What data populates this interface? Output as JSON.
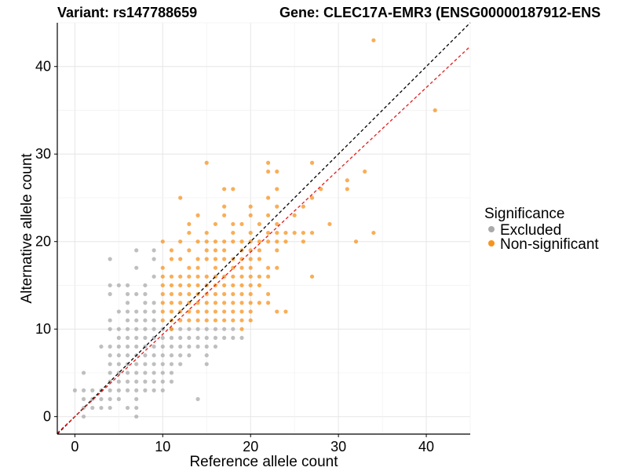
{
  "chart_data": {
    "type": "scatter",
    "title_left": "Variant: rs147788659",
    "title_right": "Gene: CLEC17A-EMR3 (ENSG00000187912-ENS",
    "xlabel": "Reference allele count",
    "ylabel": "Alternative allele count",
    "xlim": [
      -2,
      45
    ],
    "ylim": [
      -2,
      45
    ],
    "xticks": [
      0,
      10,
      20,
      30,
      40
    ],
    "yticks": [
      0,
      10,
      20,
      30,
      40
    ],
    "grid": true,
    "legend": {
      "title": "Significance",
      "position": "right",
      "entries": [
        {
          "name": "Excluded",
          "color": "#aaaaaa"
        },
        {
          "name": "Non-significant",
          "color": "#f7931e"
        }
      ]
    },
    "reference_lines": [
      {
        "kind": "diagonal",
        "slope": 1,
        "intercept": 0,
        "color": "#000000",
        "dash": "dashed"
      },
      {
        "kind": "fit",
        "slope": 0.94,
        "intercept": 0,
        "color": "#e31a1c",
        "dash": "dashed"
      }
    ],
    "series": [
      {
        "name": "Excluded",
        "color": "#aaaaaa",
        "points": [
          [
            0,
            3
          ],
          [
            1,
            0
          ],
          [
            1,
            1
          ],
          [
            1,
            2
          ],
          [
            1,
            3
          ],
          [
            1,
            5
          ],
          [
            2,
            1
          ],
          [
            2,
            2
          ],
          [
            2,
            3
          ],
          [
            3,
            1
          ],
          [
            3,
            2
          ],
          [
            3,
            3
          ],
          [
            3,
            8
          ],
          [
            4,
            1
          ],
          [
            4,
            2
          ],
          [
            4,
            3
          ],
          [
            4,
            4
          ],
          [
            4,
            5
          ],
          [
            4,
            6
          ],
          [
            4,
            7
          ],
          [
            4,
            8
          ],
          [
            4,
            10
          ],
          [
            4,
            11
          ],
          [
            4,
            14
          ],
          [
            4,
            15
          ],
          [
            4,
            18
          ],
          [
            5,
            2
          ],
          [
            5,
            3
          ],
          [
            5,
            4
          ],
          [
            5,
            5
          ],
          [
            5,
            6
          ],
          [
            5,
            7
          ],
          [
            5,
            8
          ],
          [
            5,
            9
          ],
          [
            5,
            10
          ],
          [
            5,
            12
          ],
          [
            5,
            15
          ],
          [
            6,
            1
          ],
          [
            6,
            3
          ],
          [
            6,
            4
          ],
          [
            6,
            5
          ],
          [
            6,
            6
          ],
          [
            6,
            7
          ],
          [
            6,
            8
          ],
          [
            6,
            9
          ],
          [
            6,
            10
          ],
          [
            6,
            11
          ],
          [
            6,
            12
          ],
          [
            6,
            13
          ],
          [
            6,
            14
          ],
          [
            6,
            15
          ],
          [
            7,
            0
          ],
          [
            7,
            1
          ],
          [
            7,
            2
          ],
          [
            7,
            3
          ],
          [
            7,
            4
          ],
          [
            7,
            5
          ],
          [
            7,
            6
          ],
          [
            7,
            7
          ],
          [
            7,
            8
          ],
          [
            7,
            9
          ],
          [
            7,
            10
          ],
          [
            7,
            11
          ],
          [
            7,
            12
          ],
          [
            7,
            14
          ],
          [
            7,
            17
          ],
          [
            7,
            19
          ],
          [
            8,
            3
          ],
          [
            8,
            4
          ],
          [
            8,
            5
          ],
          [
            8,
            6
          ],
          [
            8,
            7
          ],
          [
            8,
            8
          ],
          [
            8,
            9
          ],
          [
            8,
            10
          ],
          [
            8,
            11
          ],
          [
            8,
            12
          ],
          [
            8,
            13
          ],
          [
            8,
            14
          ],
          [
            8,
            15
          ],
          [
            9,
            3
          ],
          [
            9,
            4
          ],
          [
            9,
            5
          ],
          [
            9,
            6
          ],
          [
            9,
            7
          ],
          [
            9,
            8
          ],
          [
            9,
            9
          ],
          [
            9,
            10
          ],
          [
            9,
            11
          ],
          [
            9,
            12
          ],
          [
            9,
            13
          ],
          [
            9,
            16
          ],
          [
            9,
            18
          ],
          [
            9,
            19
          ],
          [
            10,
            3
          ],
          [
            10,
            4
          ],
          [
            10,
            5
          ],
          [
            10,
            6
          ],
          [
            10,
            7
          ],
          [
            10,
            8
          ],
          [
            10,
            9
          ],
          [
            10,
            10
          ],
          [
            11,
            4
          ],
          [
            11,
            5
          ],
          [
            11,
            6
          ],
          [
            11,
            7
          ],
          [
            11,
            8
          ],
          [
            11,
            9
          ],
          [
            11,
            10
          ],
          [
            12,
            6
          ],
          [
            12,
            7
          ],
          [
            12,
            8
          ],
          [
            12,
            9
          ],
          [
            12,
            10
          ],
          [
            13,
            7
          ],
          [
            13,
            8
          ],
          [
            13,
            9
          ],
          [
            13,
            10
          ],
          [
            14,
            2
          ],
          [
            14,
            8
          ],
          [
            14,
            9
          ],
          [
            14,
            10
          ],
          [
            15,
            6
          ],
          [
            15,
            7
          ],
          [
            15,
            8
          ],
          [
            15,
            9
          ],
          [
            15,
            10
          ],
          [
            16,
            8
          ],
          [
            16,
            9
          ],
          [
            16,
            10
          ],
          [
            17,
            9
          ],
          [
            17,
            10
          ],
          [
            18,
            9
          ],
          [
            18,
            10
          ],
          [
            19,
            9
          ]
        ]
      },
      {
        "name": "Non-significant",
        "color": "#f7931e",
        "points": [
          [
            10,
            11
          ],
          [
            10,
            12
          ],
          [
            10,
            13
          ],
          [
            10,
            14
          ],
          [
            10,
            15
          ],
          [
            10,
            16
          ],
          [
            10,
            17
          ],
          [
            10,
            20
          ],
          [
            11,
            10
          ],
          [
            11,
            11
          ],
          [
            11,
            12
          ],
          [
            11,
            13
          ],
          [
            11,
            14
          ],
          [
            11,
            15
          ],
          [
            11,
            16
          ],
          [
            11,
            18
          ],
          [
            11,
            19
          ],
          [
            12,
            11
          ],
          [
            12,
            12
          ],
          [
            12,
            13
          ],
          [
            12,
            14
          ],
          [
            12,
            15
          ],
          [
            12,
            16
          ],
          [
            12,
            18
          ],
          [
            12,
            20
          ],
          [
            12,
            25
          ],
          [
            13,
            11
          ],
          [
            13,
            12
          ],
          [
            13,
            13
          ],
          [
            13,
            14
          ],
          [
            13,
            15
          ],
          [
            13,
            16
          ],
          [
            13,
            17
          ],
          [
            13,
            19
          ],
          [
            13,
            21
          ],
          [
            13,
            22
          ],
          [
            14,
            11
          ],
          [
            14,
            12
          ],
          [
            14,
            13
          ],
          [
            14,
            14
          ],
          [
            14,
            15
          ],
          [
            14,
            16
          ],
          [
            14,
            17
          ],
          [
            14,
            18
          ],
          [
            14,
            20
          ],
          [
            14,
            23
          ],
          [
            15,
            11
          ],
          [
            15,
            12
          ],
          [
            15,
            13
          ],
          [
            15,
            14
          ],
          [
            15,
            15
          ],
          [
            15,
            16
          ],
          [
            15,
            18
          ],
          [
            15,
            19
          ],
          [
            15,
            20
          ],
          [
            15,
            21
          ],
          [
            15,
            29
          ],
          [
            16,
            11
          ],
          [
            16,
            12
          ],
          [
            16,
            13
          ],
          [
            16,
            14
          ],
          [
            16,
            15
          ],
          [
            16,
            16
          ],
          [
            16,
            17
          ],
          [
            16,
            18
          ],
          [
            16,
            19
          ],
          [
            16,
            20
          ],
          [
            16,
            22
          ],
          [
            17,
            11
          ],
          [
            17,
            12
          ],
          [
            17,
            13
          ],
          [
            17,
            14
          ],
          [
            17,
            15
          ],
          [
            17,
            16
          ],
          [
            17,
            18
          ],
          [
            17,
            19
          ],
          [
            17,
            20
          ],
          [
            17,
            23
          ],
          [
            17,
            24
          ],
          [
            17,
            26
          ],
          [
            18,
            11
          ],
          [
            18,
            12
          ],
          [
            18,
            13
          ],
          [
            18,
            14
          ],
          [
            18,
            15
          ],
          [
            18,
            16
          ],
          [
            18,
            17
          ],
          [
            18,
            18
          ],
          [
            18,
            20
          ],
          [
            18,
            21
          ],
          [
            18,
            22
          ],
          [
            18,
            26
          ],
          [
            19,
            10
          ],
          [
            19,
            11
          ],
          [
            19,
            12
          ],
          [
            19,
            13
          ],
          [
            19,
            14
          ],
          [
            19,
            15
          ],
          [
            19,
            16
          ],
          [
            19,
            17
          ],
          [
            19,
            18
          ],
          [
            19,
            19
          ],
          [
            19,
            20
          ],
          [
            19,
            22
          ],
          [
            20,
            11
          ],
          [
            20,
            12
          ],
          [
            20,
            13
          ],
          [
            20,
            14
          ],
          [
            20,
            15
          ],
          [
            20,
            16
          ],
          [
            20,
            17
          ],
          [
            20,
            18
          ],
          [
            20,
            19
          ],
          [
            20,
            20
          ],
          [
            20,
            21
          ],
          [
            20,
            23
          ],
          [
            20,
            24
          ],
          [
            21,
            13
          ],
          [
            21,
            15
          ],
          [
            21,
            16
          ],
          [
            21,
            18
          ],
          [
            21,
            19
          ],
          [
            21,
            20
          ],
          [
            21,
            22
          ],
          [
            22,
            13
          ],
          [
            22,
            14
          ],
          [
            22,
            16
          ],
          [
            22,
            17
          ],
          [
            22,
            20
          ],
          [
            22,
            21
          ],
          [
            22,
            23
          ],
          [
            22,
            25
          ],
          [
            22,
            28
          ],
          [
            22,
            29
          ],
          [
            23,
            12
          ],
          [
            23,
            17
          ],
          [
            23,
            19
          ],
          [
            23,
            20
          ],
          [
            23,
            21
          ],
          [
            23,
            22
          ],
          [
            23,
            24
          ],
          [
            23,
            26
          ],
          [
            23,
            28
          ],
          [
            24,
            12
          ],
          [
            24,
            20
          ],
          [
            24,
            21
          ],
          [
            25,
            21
          ],
          [
            25,
            23
          ],
          [
            26,
            20
          ],
          [
            26,
            21
          ],
          [
            26,
            24
          ],
          [
            27,
            16
          ],
          [
            27,
            21
          ],
          [
            27,
            25
          ],
          [
            27,
            29
          ],
          [
            28,
            26
          ],
          [
            29,
            22
          ],
          [
            31,
            26
          ],
          [
            31,
            27
          ],
          [
            32,
            20
          ],
          [
            33,
            28
          ],
          [
            34,
            21
          ],
          [
            34,
            43
          ],
          [
            41,
            35
          ]
        ]
      }
    ]
  }
}
